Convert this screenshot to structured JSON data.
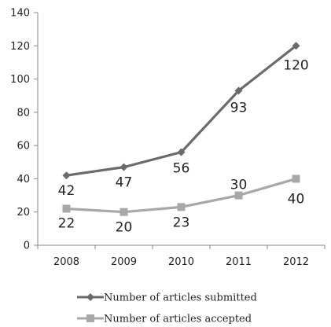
{
  "chart_data": {
    "type": "line",
    "title": "",
    "xlabel": "",
    "ylabel": "",
    "categories": [
      "2008",
      "2009",
      "2010",
      "2011",
      "2012"
    ],
    "ylim": [
      0,
      140
    ],
    "yticks": [
      0,
      20,
      40,
      60,
      80,
      100,
      120,
      140
    ],
    "grid": false,
    "legend_position": "bottom",
    "series": [
      {
        "name": "Number of articles submitted",
        "values": [
          42,
          47,
          56,
          93,
          120
        ],
        "color": "#6b6b6b",
        "marker": "diamond"
      },
      {
        "name": "Number of articles accepted",
        "values": [
          22,
          20,
          23,
          30,
          40
        ],
        "color": "#a8a8a8",
        "marker": "square"
      }
    ]
  }
}
